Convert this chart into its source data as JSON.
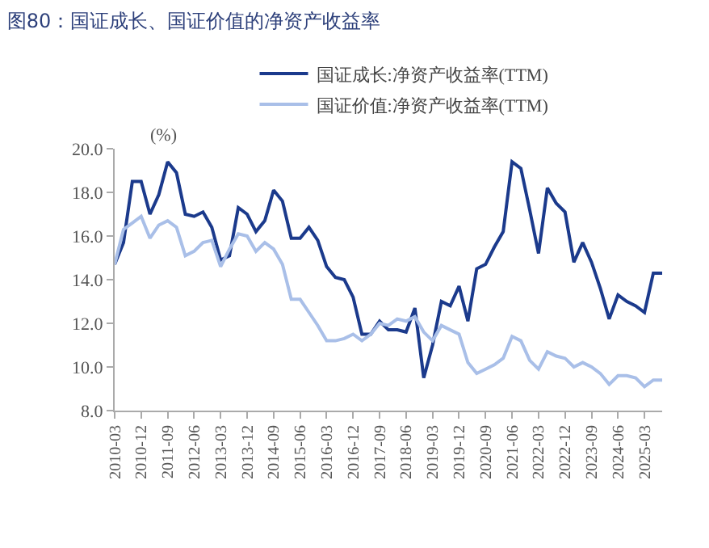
{
  "chart_data": {
    "type": "line",
    "title": "图80：国证成长、国证价值的净资产收益率",
    "ylabel": "(%)",
    "categories": [
      "2010-03",
      null,
      null,
      "2010-12",
      null,
      null,
      "2011-09",
      null,
      null,
      "2012-06",
      null,
      null,
      "2013-03",
      null,
      null,
      "2013-12",
      null,
      null,
      "2014-09",
      null,
      null,
      "2015-06",
      null,
      null,
      "2016-03",
      null,
      null,
      "2016-12",
      null,
      null,
      "2017-09",
      null,
      null,
      "2018-06",
      null,
      null,
      "2019-03",
      null,
      null,
      "2019-12",
      null,
      null,
      "2020-09",
      null,
      null,
      "2021-06",
      null,
      null,
      "2022-03",
      null,
      null,
      "2022-12",
      null,
      null,
      "2023-09",
      null,
      null,
      "2024-06",
      null,
      null,
      "2025-03",
      null,
      null
    ],
    "series": [
      {
        "name": "国证成长:净资产收益率(TTM)",
        "color": "#1b3a8c",
        "values": [
          14.7,
          15.7,
          18.5,
          18.5,
          17.0,
          17.9,
          19.4,
          18.9,
          17.0,
          16.9,
          17.1,
          16.4,
          14.9,
          15.1,
          17.3,
          17.0,
          16.2,
          16.7,
          18.1,
          17.6,
          15.9,
          15.9,
          16.4,
          15.8,
          14.6,
          14.1,
          14.0,
          13.2,
          11.5,
          11.5,
          12.1,
          11.7,
          11.7,
          11.6,
          12.7,
          9.5,
          11.0,
          13.0,
          12.8,
          13.7,
          12.1,
          14.5,
          14.7,
          15.5,
          16.2,
          19.4,
          19.1,
          17.2,
          15.2,
          18.2,
          17.5,
          17.1,
          14.8,
          15.7,
          14.8,
          13.6,
          12.2,
          13.3,
          13.0,
          12.8,
          12.5,
          14.3,
          14.3
        ]
      },
      {
        "name": "国证价值:净资产收益率(TTM)",
        "color": "#a9bfe8",
        "values": [
          14.7,
          16.3,
          16.6,
          16.9,
          15.9,
          16.5,
          16.7,
          16.4,
          15.1,
          15.3,
          15.7,
          15.8,
          14.6,
          15.4,
          16.1,
          16.0,
          15.3,
          15.7,
          15.4,
          14.7,
          13.1,
          13.1,
          12.5,
          11.9,
          11.2,
          11.2,
          11.3,
          11.5,
          11.2,
          11.5,
          12.0,
          11.9,
          12.2,
          12.1,
          12.3,
          11.6,
          11.2,
          11.9,
          11.7,
          11.5,
          10.2,
          9.7,
          9.9,
          10.1,
          10.4,
          11.4,
          11.2,
          10.3,
          9.9,
          10.7,
          10.5,
          10.4,
          10.0,
          10.2,
          10.0,
          9.7,
          9.2,
          9.6,
          9.6,
          9.5,
          9.1,
          9.4,
          9.4
        ]
      }
    ],
    "ylim": [
      8,
      20
    ],
    "yticks": [
      {
        "value": 8,
        "label": "8.0"
      },
      {
        "value": 10,
        "label": "10.0"
      },
      {
        "value": 12,
        "label": "12.0"
      },
      {
        "value": 14,
        "label": "14.0"
      },
      {
        "value": 16,
        "label": "16.0"
      },
      {
        "value": 18,
        "label": "18.0"
      },
      {
        "value": 20,
        "label": "20.0"
      }
    ],
    "legend": "top",
    "marker": "none",
    "line_style": "solid"
  }
}
